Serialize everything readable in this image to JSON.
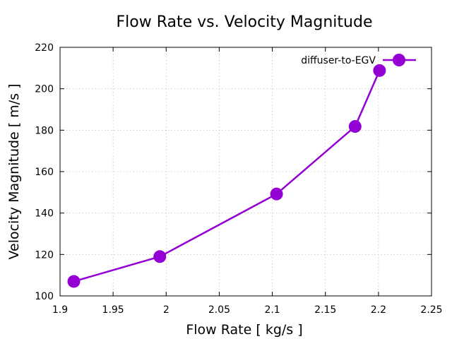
{
  "chart_data": {
    "type": "line",
    "title": "Flow Rate vs. Velocity Magnitude",
    "xlabel": "Flow Rate [ kg/s ]",
    "ylabel": "Velocity Magnitude [ m/s ]",
    "xlim": [
      1.9,
      2.25
    ],
    "ylim": [
      100,
      220
    ],
    "xticks": [
      1.9,
      1.95,
      2,
      2.05,
      2.1,
      2.15,
      2.2,
      2.25
    ],
    "xtick_labels": [
      "1.9",
      "1.95",
      "2",
      "2.05",
      "2.1",
      "2.15",
      "2.2",
      "2.25"
    ],
    "yticks": [
      100,
      120,
      140,
      160,
      180,
      200,
      220
    ],
    "ytick_labels": [
      "100",
      "120",
      "140",
      "160",
      "180",
      "200",
      "220"
    ],
    "grid": true,
    "legend_position": "top-right",
    "series": [
      {
        "name": "diffuser-to-EGV",
        "color": "#9400d3",
        "marker": "circle",
        "x": [
          1.913,
          1.994,
          2.104,
          2.178,
          2.201
        ],
        "y": [
          107,
          119,
          149.2,
          181.8,
          208.8
        ]
      }
    ]
  }
}
